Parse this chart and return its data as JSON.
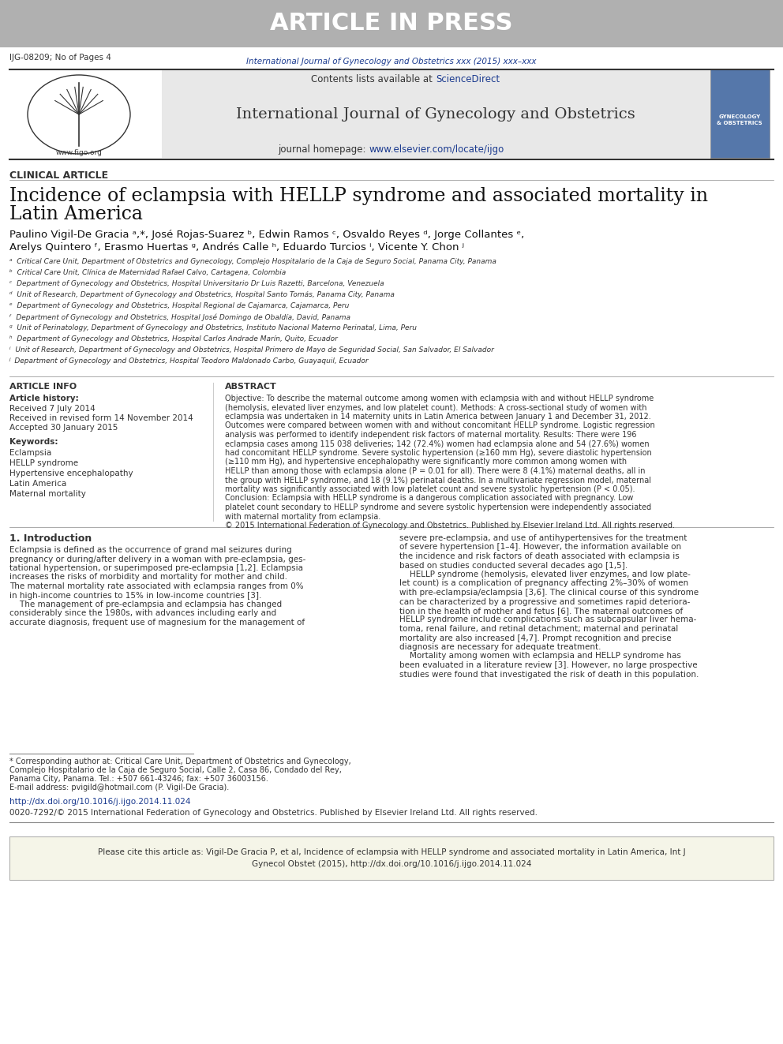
{
  "bg_color": "#ffffff",
  "header_bg": "#b0b0b0",
  "header_text": "ARTICLE IN PRESS",
  "header_text_color": "#ffffff",
  "doc_id": "IJG-08209; No of Pages 4",
  "journal_ref_color": "#1a3a8f",
  "journal_ref": "International Journal of Gynecology and Obstetrics xxx (2015) xxx–xxx",
  "journal_header_bg": "#e8e8e8",
  "journal_name": "International Journal of Gynecology and Obstetrics",
  "journal_homepage_label": "journal homepage:",
  "journal_homepage_url": "www.elsevier.com/locate/ijgo",
  "contents_label": "Contents lists available at ",
  "sciencedirect": "ScienceDirect",
  "link_color": "#1a3a8f",
  "section_label": "CLINICAL ARTICLE",
  "article_title": "Incidence of eclampsia with HELLP syndrome and associated mortality in\nLatin America",
  "authors": "Paulino Vigil-De Gracia ᵃ,*, José Rojas-Suarez ᵇ, Edwin Ramos ᶜ, Osvaldo Reyes ᵈ, Jorge Collantes ᵉ,\nArelys Quintero ᶠ, Erasmo Huertas ᵍ, Andrés Calle ʰ, Eduardo Turcios ⁱ, Vicente Y. Chon ʲ",
  "affiliations": [
    "ᵃ  Critical Care Unit, Department of Obstetrics and Gynecology, Complejo Hospitalario de la Caja de Seguro Social, Panama City, Panama",
    "ᵇ  Critical Care Unit, Clínica de Maternidad Rafael Calvo, Cartagena, Colombia",
    "ᶜ  Department of Gynecology and Obstetrics, Hospital Universitario Dr Luis Razetti, Barcelona, Venezuela",
    "ᵈ  Unit of Research, Department of Gynecology and Obstetrics, Hospital Santo Tomás, Panama City, Panama",
    "ᵉ  Department of Gynecology and Obstetrics, Hospital Regional de Cajamarca, Cajamarca, Peru",
    "ᶠ  Department of Gynecology and Obstetrics, Hospital José Domingo de Obaldía, David, Panama",
    "ᵍ  Unit of Perinatology, Department of Gynecology and Obstetrics, Instituto Nacional Materno Perinatal, Lima, Peru",
    "ʰ  Department of Gynecology and Obstetrics, Hospital Carlos Andrade Marín, Quito, Ecuador",
    "ⁱ  Unit of Research, Department of Gynecology and Obstetrics, Hospital Primero de Mayo de Seguridad Social, San Salvador, El Salvador",
    "ʲ  Department of Gynecology and Obstetrics, Hospital Teodoro Maldonado Carbo, Guayaquil, Ecuador"
  ],
  "article_info_title": "ARTICLE INFO",
  "article_history_label": "Article history:",
  "received_1": "Received 7 July 2014",
  "received_2": "Received in revised form 14 November 2014",
  "accepted": "Accepted 30 January 2015",
  "keywords_label": "Keywords:",
  "keywords": [
    "Eclampsia",
    "HELLP syndrome",
    "Hypertensive encephalopathy",
    "Latin America",
    "Maternal mortality"
  ],
  "abstract_title": "ABSTRACT",
  "abstract_text": "Objective: To describe the maternal outcome among women with eclampsia with and without HELLP syndrome\n(hemolysis, elevated liver enzymes, and low platelet count). Methods: A cross-sectional study of women with\neclampsia was undertaken in 14 maternity units in Latin America between January 1 and December 31, 2012.\nOutcomes were compared between women with and without concomitant HELLP syndrome. Logistic regression\nanalysis was performed to identify independent risk factors of maternal mortality. Results: There were 196\neclampsia cases among 115 038 deliveries; 142 (72.4%) women had eclampsia alone and 54 (27.6%) women\nhad concomitant HELLP syndrome. Severe systolic hypertension (≥160 mm Hg), severe diastolic hypertension\n(≥110 mm Hg), and hypertensive encephalopathy were significantly more common among women with\nHELLP than among those with eclampsia alone (P = 0.01 for all). There were 8 (4.1%) maternal deaths, all in\nthe group with HELLP syndrome, and 18 (9.1%) perinatal deaths. In a multivariate regression model, maternal\nmortality was significantly associated with low platelet count and severe systolic hypertension (P < 0.05).\nConclusion: Eclampsia with HELLP syndrome is a dangerous complication associated with pregnancy. Low\nplatelet count secondary to HELLP syndrome and severe systolic hypertension were independently associated\nwith maternal mortality from eclampsia.\n© 2015 International Federation of Gynecology and Obstetrics. Published by Elsevier Ireland Ltd. All rights reserved.",
  "intro_title": "1. Introduction",
  "intro_col1": "Eclampsia is defined as the occurrence of grand mal seizures during\npregnancy or during/after delivery in a woman with pre-eclampsia, ges-\ntational hypertension, or superimposed pre-eclampsia [1,2]. Eclampsia\nincreases the risks of morbidity and mortality for mother and child.\nThe maternal mortality rate associated with eclampsia ranges from 0%\nin high-income countries to 15% in low-income countries [3].\n    The management of pre-eclampsia and eclampsia has changed\nconsiderably since the 1980s, with advances including early and\naccurate diagnosis, frequent use of magnesium for the management of",
  "intro_col2": "severe pre-eclampsia, and use of antihypertensives for the treatment\nof severe hypertension [1–4]. However, the information available on\nthe incidence and risk factors of death associated with eclampsia is\nbased on studies conducted several decades ago [1,5].\n    HELLP syndrome (hemolysis, elevated liver enzymes, and low plate-\nlet count) is a complication of pregnancy affecting 2%–30% of women\nwith pre-eclampsia/eclampsia [3,6]. The clinical course of this syndrome\ncan be characterized by a progressive and sometimes rapid deteriora-\ntion in the health of mother and fetus [6]. The maternal outcomes of\nHELLP syndrome include complications such as subcapsular liver hema-\ntoma, renal failure, and retinal detachment; maternal and perinatal\nmortality are also increased [4,7]. Prompt recognition and precise\ndiagnosis are necessary for adequate treatment.\n    Mortality among women with eclampsia and HELLP syndrome has\nbeen evaluated in a literature review [3]. However, no large prospective\nstudies were found that investigated the risk of death in this population.",
  "footnote_corresponding": "* Corresponding author at: Critical Care Unit, Department of Obstetrics and Gynecology,\nComplejo Hospitalario de la Caja de Seguro Social, Calle 2, Casa 86, Condado del Rey,\nPanama City, Panama. Tel.: +507 661-43246; fax: +507 36003156.\nE-mail address: pvigild@hotmail.com (P. Vigil-De Gracia).",
  "doi_link": "http://dx.doi.org/10.1016/j.ijgo.2014.11.024",
  "copyright": "0020-7292/© 2015 International Federation of Gynecology and Obstetrics. Published by Elsevier Ireland Ltd. All rights reserved.",
  "cite_box_text": "Please cite this article as: Vigil-De Gracia P, et al, Incidence of eclampsia with HELLP syndrome and associated mortality in Latin America, Int J\nGynecol Obstet (2015), http://dx.doi.org/10.1016/j.ijgo.2014.11.024",
  "cite_box_bg": "#f5f5dc",
  "border_color": "#cccccc"
}
